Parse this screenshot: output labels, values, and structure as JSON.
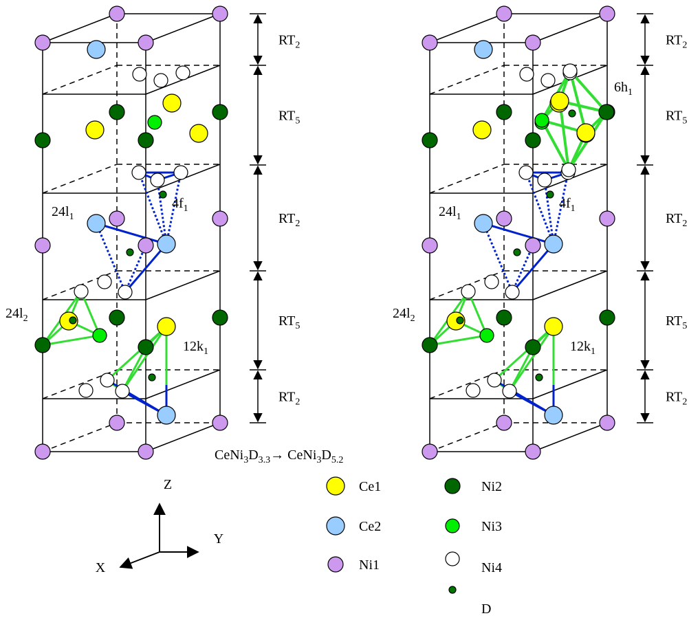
{
  "panels": [
    {
      "layers": [
        {
          "text": "RT",
          "sub": "2"
        },
        {
          "text": "RT",
          "sub": "5"
        },
        {
          "text": "RT",
          "sub": "2"
        },
        {
          "text": "RT",
          "sub": "5"
        },
        {
          "text": "RT",
          "sub": "2"
        }
      ],
      "sites": [
        {
          "text": "24l",
          "sub": "1"
        },
        {
          "text": "4f",
          "sub": "1"
        },
        {
          "text": "24l",
          "sub": "2"
        },
        {
          "text": "12k",
          "sub": "1"
        }
      ]
    },
    {
      "layers": [
        {
          "text": "RT",
          "sub": "2"
        },
        {
          "text": "RT",
          "sub": "5"
        },
        {
          "text": "RT",
          "sub": "2"
        },
        {
          "text": "RT",
          "sub": "5"
        },
        {
          "text": "RT",
          "sub": "2"
        }
      ],
      "sites": [
        {
          "text": "24l",
          "sub": "1"
        },
        {
          "text": "4f",
          "sub": "1"
        },
        {
          "text": "24l",
          "sub": "2"
        },
        {
          "text": "12k",
          "sub": "1"
        },
        {
          "text": "6h",
          "sub": "1"
        }
      ]
    }
  ],
  "caption": [
    {
      "text": "CeNi"
    },
    {
      "text": "3",
      "sub": true
    },
    {
      "text": "D"
    },
    {
      "text": "3.3",
      "sub": true
    },
    {
      "text": "→ CeNi"
    },
    {
      "text": "3",
      "sub": true
    },
    {
      "text": "D"
    },
    {
      "text": "5.2",
      "sub": true
    }
  ],
  "axes": {
    "z": "Z",
    "y": "Y",
    "x": "X"
  },
  "legend": [
    "Ce1",
    "Ce2",
    "Ni1",
    "Ni2",
    "Ni3",
    "Ni4",
    "D"
  ]
}
